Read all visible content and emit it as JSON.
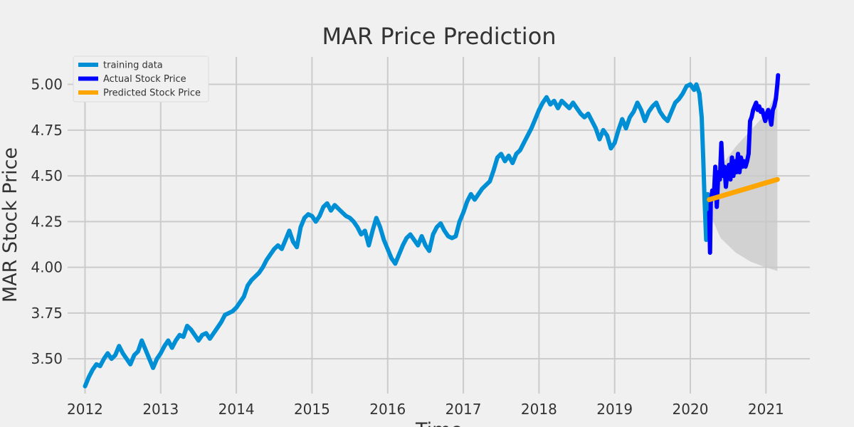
{
  "chart_data": {
    "type": "line",
    "title": "MAR Price Prediction",
    "xlabel": "Time",
    "ylabel": "MAR Stock Price",
    "xlim": [
      2011.77,
      2021.58
    ],
    "ylim": [
      3.31,
      5.15
    ],
    "grid": true,
    "legend_position": "top-left",
    "x_ticks": [
      2012,
      2013,
      2014,
      2015,
      2016,
      2017,
      2018,
      2019,
      2020,
      2021
    ],
    "y_ticks": [
      3.5,
      3.75,
      4.0,
      4.25,
      4.5,
      4.75,
      5.0
    ],
    "y_tick_labels": [
      "3.50",
      "3.75",
      "4.00",
      "4.25",
      "4.50",
      "4.75",
      "5.00"
    ],
    "series": [
      {
        "name": "training data",
        "color": "#008fd5",
        "points": [
          [
            2012.0,
            3.35
          ],
          [
            2012.05,
            3.4
          ],
          [
            2012.1,
            3.44
          ],
          [
            2012.15,
            3.47
          ],
          [
            2012.2,
            3.46
          ],
          [
            2012.25,
            3.5
          ],
          [
            2012.3,
            3.53
          ],
          [
            2012.35,
            3.5
          ],
          [
            2012.4,
            3.52
          ],
          [
            2012.45,
            3.57
          ],
          [
            2012.5,
            3.53
          ],
          [
            2012.55,
            3.5
          ],
          [
            2012.6,
            3.47
          ],
          [
            2012.65,
            3.52
          ],
          [
            2012.7,
            3.54
          ],
          [
            2012.75,
            3.6
          ],
          [
            2012.8,
            3.55
          ],
          [
            2012.85,
            3.5
          ],
          [
            2012.9,
            3.45
          ],
          [
            2012.95,
            3.5
          ],
          [
            2013.0,
            3.53
          ],
          [
            2013.05,
            3.57
          ],
          [
            2013.1,
            3.6
          ],
          [
            2013.15,
            3.56
          ],
          [
            2013.2,
            3.6
          ],
          [
            2013.25,
            3.63
          ],
          [
            2013.3,
            3.62
          ],
          [
            2013.35,
            3.68
          ],
          [
            2013.4,
            3.66
          ],
          [
            2013.45,
            3.63
          ],
          [
            2013.5,
            3.6
          ],
          [
            2013.55,
            3.63
          ],
          [
            2013.6,
            3.64
          ],
          [
            2013.65,
            3.61
          ],
          [
            2013.7,
            3.64
          ],
          [
            2013.75,
            3.67
          ],
          [
            2013.8,
            3.7
          ],
          [
            2013.85,
            3.74
          ],
          [
            2013.9,
            3.75
          ],
          [
            2013.95,
            3.76
          ],
          [
            2014.0,
            3.78
          ],
          [
            2014.05,
            3.81
          ],
          [
            2014.1,
            3.84
          ],
          [
            2014.15,
            3.9
          ],
          [
            2014.2,
            3.93
          ],
          [
            2014.25,
            3.95
          ],
          [
            2014.3,
            3.97
          ],
          [
            2014.35,
            4.0
          ],
          [
            2014.4,
            4.04
          ],
          [
            2014.45,
            4.07
          ],
          [
            2014.5,
            4.1
          ],
          [
            2014.55,
            4.12
          ],
          [
            2014.6,
            4.1
          ],
          [
            2014.65,
            4.15
          ],
          [
            2014.7,
            4.2
          ],
          [
            2014.75,
            4.14
          ],
          [
            2014.8,
            4.11
          ],
          [
            2014.85,
            4.22
          ],
          [
            2014.9,
            4.27
          ],
          [
            2014.95,
            4.29
          ],
          [
            2015.0,
            4.28
          ],
          [
            2015.05,
            4.25
          ],
          [
            2015.1,
            4.28
          ],
          [
            2015.15,
            4.33
          ],
          [
            2015.2,
            4.35
          ],
          [
            2015.25,
            4.31
          ],
          [
            2015.3,
            4.34
          ],
          [
            2015.35,
            4.32
          ],
          [
            2015.4,
            4.3
          ],
          [
            2015.45,
            4.28
          ],
          [
            2015.5,
            4.27
          ],
          [
            2015.55,
            4.25
          ],
          [
            2015.6,
            4.22
          ],
          [
            2015.65,
            4.18
          ],
          [
            2015.7,
            4.2
          ],
          [
            2015.75,
            4.12
          ],
          [
            2015.8,
            4.2
          ],
          [
            2015.85,
            4.27
          ],
          [
            2015.9,
            4.22
          ],
          [
            2015.95,
            4.15
          ],
          [
            2016.0,
            4.1
          ],
          [
            2016.05,
            4.05
          ],
          [
            2016.1,
            4.02
          ],
          [
            2016.15,
            4.07
          ],
          [
            2016.2,
            4.12
          ],
          [
            2016.25,
            4.16
          ],
          [
            2016.3,
            4.18
          ],
          [
            2016.35,
            4.15
          ],
          [
            2016.4,
            4.12
          ],
          [
            2016.45,
            4.17
          ],
          [
            2016.5,
            4.12
          ],
          [
            2016.55,
            4.09
          ],
          [
            2016.6,
            4.18
          ],
          [
            2016.65,
            4.22
          ],
          [
            2016.7,
            4.24
          ],
          [
            2016.75,
            4.2
          ],
          [
            2016.8,
            4.17
          ],
          [
            2016.85,
            4.16
          ],
          [
            2016.9,
            4.17
          ],
          [
            2016.95,
            4.25
          ],
          [
            2017.0,
            4.3
          ],
          [
            2017.05,
            4.36
          ],
          [
            2017.1,
            4.4
          ],
          [
            2017.15,
            4.37
          ],
          [
            2017.2,
            4.4
          ],
          [
            2017.25,
            4.43
          ],
          [
            2017.3,
            4.45
          ],
          [
            2017.35,
            4.47
          ],
          [
            2017.4,
            4.53
          ],
          [
            2017.45,
            4.6
          ],
          [
            2017.5,
            4.62
          ],
          [
            2017.55,
            4.58
          ],
          [
            2017.6,
            4.61
          ],
          [
            2017.65,
            4.57
          ],
          [
            2017.7,
            4.62
          ],
          [
            2017.75,
            4.64
          ],
          [
            2017.8,
            4.68
          ],
          [
            2017.85,
            4.72
          ],
          [
            2017.9,
            4.76
          ],
          [
            2017.95,
            4.81
          ],
          [
            2018.0,
            4.86
          ],
          [
            2018.05,
            4.9
          ],
          [
            2018.1,
            4.93
          ],
          [
            2018.15,
            4.89
          ],
          [
            2018.2,
            4.91
          ],
          [
            2018.25,
            4.87
          ],
          [
            2018.3,
            4.91
          ],
          [
            2018.35,
            4.89
          ],
          [
            2018.4,
            4.87
          ],
          [
            2018.45,
            4.9
          ],
          [
            2018.5,
            4.87
          ],
          [
            2018.55,
            4.84
          ],
          [
            2018.6,
            4.82
          ],
          [
            2018.65,
            4.84
          ],
          [
            2018.7,
            4.8
          ],
          [
            2018.75,
            4.76
          ],
          [
            2018.8,
            4.7
          ],
          [
            2018.85,
            4.75
          ],
          [
            2018.9,
            4.72
          ],
          [
            2018.95,
            4.65
          ],
          [
            2019.0,
            4.68
          ],
          [
            2019.05,
            4.75
          ],
          [
            2019.1,
            4.81
          ],
          [
            2019.15,
            4.76
          ],
          [
            2019.2,
            4.82
          ],
          [
            2019.25,
            4.85
          ],
          [
            2019.3,
            4.9
          ],
          [
            2019.35,
            4.86
          ],
          [
            2019.4,
            4.8
          ],
          [
            2019.45,
            4.85
          ],
          [
            2019.5,
            4.88
          ],
          [
            2019.55,
            4.9
          ],
          [
            2019.6,
            4.85
          ],
          [
            2019.65,
            4.82
          ],
          [
            2019.7,
            4.8
          ],
          [
            2019.75,
            4.85
          ],
          [
            2019.8,
            4.9
          ],
          [
            2019.85,
            4.92
          ],
          [
            2019.9,
            4.95
          ],
          [
            2019.95,
            4.99
          ],
          [
            2020.0,
            5.0
          ],
          [
            2020.05,
            4.97
          ],
          [
            2020.08,
            5.0
          ],
          [
            2020.12,
            4.95
          ],
          [
            2020.15,
            4.82
          ],
          [
            2020.17,
            4.6
          ],
          [
            2020.19,
            4.35
          ],
          [
            2020.21,
            4.15
          ],
          [
            2020.23,
            4.4
          ],
          [
            2020.25,
            4.3
          ]
        ]
      },
      {
        "name": "Actual Stock Price",
        "color": "#0000ff",
        "points": [
          [
            2020.25,
            4.3
          ],
          [
            2020.26,
            4.08
          ],
          [
            2020.27,
            4.35
          ],
          [
            2020.29,
            4.42
          ],
          [
            2020.31,
            4.38
          ],
          [
            2020.33,
            4.55
          ],
          [
            2020.35,
            4.33
          ],
          [
            2020.37,
            4.52
          ],
          [
            2020.39,
            4.48
          ],
          [
            2020.41,
            4.68
          ],
          [
            2020.43,
            4.5
          ],
          [
            2020.45,
            4.55
          ],
          [
            2020.47,
            4.44
          ],
          [
            2020.49,
            4.52
          ],
          [
            2020.51,
            4.56
          ],
          [
            2020.53,
            4.48
          ],
          [
            2020.55,
            4.6
          ],
          [
            2020.57,
            4.5
          ],
          [
            2020.59,
            4.58
          ],
          [
            2020.61,
            4.52
          ],
          [
            2020.63,
            4.62
          ],
          [
            2020.65,
            4.52
          ],
          [
            2020.67,
            4.6
          ],
          [
            2020.69,
            4.55
          ],
          [
            2020.71,
            4.58
          ],
          [
            2020.73,
            4.55
          ],
          [
            2020.75,
            4.58
          ],
          [
            2020.77,
            4.62
          ],
          [
            2020.79,
            4.8
          ],
          [
            2020.81,
            4.82
          ],
          [
            2020.83,
            4.86
          ],
          [
            2020.85,
            4.88
          ],
          [
            2020.87,
            4.9
          ],
          [
            2020.89,
            4.86
          ],
          [
            2020.91,
            4.88
          ],
          [
            2020.93,
            4.85
          ],
          [
            2020.95,
            4.86
          ],
          [
            2020.97,
            4.83
          ],
          [
            2020.99,
            4.8
          ],
          [
            2021.01,
            4.84
          ],
          [
            2021.03,
            4.86
          ],
          [
            2021.05,
            4.82
          ],
          [
            2021.07,
            4.78
          ],
          [
            2021.09,
            4.86
          ],
          [
            2021.11,
            4.88
          ],
          [
            2021.13,
            4.92
          ],
          [
            2021.15,
            5.0
          ],
          [
            2021.16,
            5.05
          ]
        ]
      },
      {
        "name": "Predicted Stock Price",
        "color": "#ffa500",
        "points": [
          [
            2020.25,
            4.37
          ],
          [
            2021.15,
            4.48
          ]
        ]
      }
    ],
    "confidence_band": {
      "color": "#c8c8c8",
      "upper": [
        [
          2020.25,
          4.4
        ],
        [
          2020.4,
          4.55
        ],
        [
          2020.6,
          4.66
        ],
        [
          2020.8,
          4.75
        ],
        [
          2021.0,
          4.84
        ],
        [
          2021.15,
          4.97
        ]
      ],
      "lower": [
        [
          2020.25,
          4.3
        ],
        [
          2020.4,
          4.16
        ],
        [
          2020.6,
          4.08
        ],
        [
          2020.8,
          4.03
        ],
        [
          2021.0,
          4.0
        ],
        [
          2021.15,
          3.98
        ]
      ]
    }
  }
}
